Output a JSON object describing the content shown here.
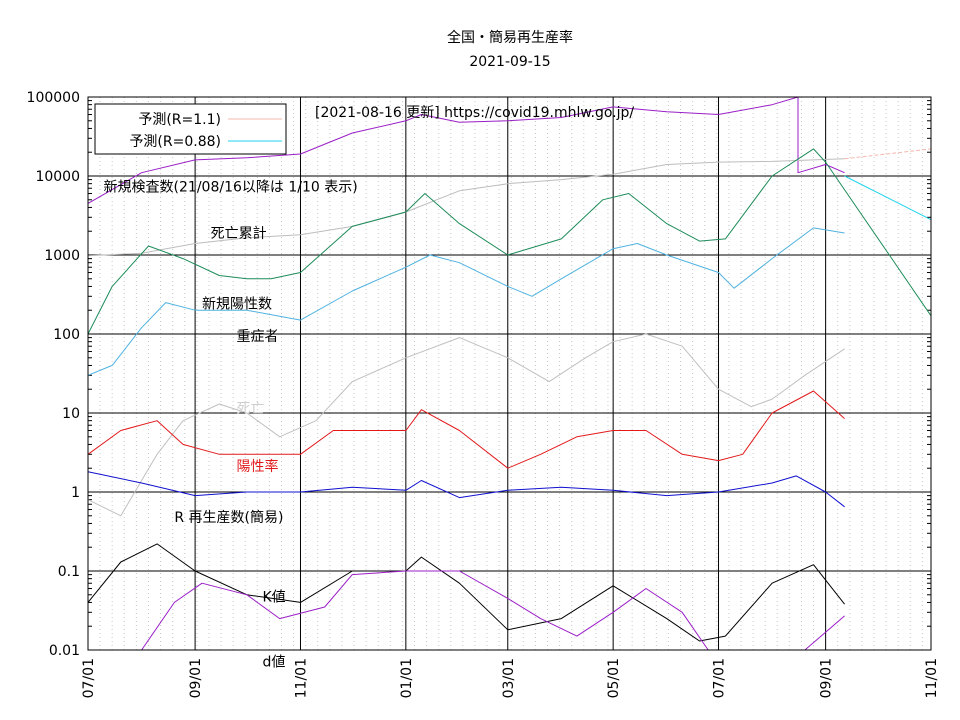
{
  "chart_data": {
    "type": "line",
    "title": "全国・簡易再生産率",
    "subtitle": "2021-09-15",
    "source_note": "[2021-08-16 更新] https://covid19.mhlw.go.jp/",
    "y_scale": "log",
    "ylim": [
      0.01,
      100000
    ],
    "y_ticks": [
      "0.01",
      "0.1",
      "1",
      "10",
      "100",
      "1000",
      "10000",
      "100000"
    ],
    "x_range": [
      "2020-07-01",
      "2021-11-01"
    ],
    "x_ticks": [
      "07/01",
      "09/01",
      "11/01",
      "01/01",
      "03/01",
      "05/01",
      "07/01",
      "09/01",
      "11/01"
    ],
    "grid": true,
    "legend": {
      "placement": "top-left",
      "entries": [
        {
          "label": "予測(R=1.1)",
          "color": "#f4b8ae"
        },
        {
          "label": "予測(R=0.88)",
          "color": "#22d3ee"
        }
      ]
    },
    "series": [
      {
        "name": "新規検査数(21/08/16以降は 1/10 表示)",
        "color": "#9b1fc7",
        "x": [
          "2020-07-01",
          "2020-08-01",
          "2020-09-01",
          "2020-10-01",
          "2020-11-01",
          "2020-12-01",
          "2021-01-01",
          "2021-01-10",
          "2021-02-01",
          "2021-03-01",
          "2021-04-01",
          "2021-05-01",
          "2021-06-01",
          "2021-07-01",
          "2021-08-01",
          "2021-08-16",
          "2021-08-16",
          "2021-09-01",
          "2021-09-12"
        ],
        "values": [
          4500,
          11000,
          16000,
          17000,
          19000,
          35000,
          50000,
          60000,
          48000,
          50000,
          55000,
          75000,
          65000,
          60000,
          80000,
          100000,
          11000,
          14000,
          11000
        ]
      },
      {
        "name": "死亡累計",
        "color": "#bdbdbd",
        "x": [
          "2020-07-01",
          "2020-08-01",
          "2020-09-01",
          "2020-10-01",
          "2020-11-01",
          "2020-12-01",
          "2021-01-01",
          "2021-02-01",
          "2021-03-01",
          "2021-04-01",
          "2021-05-01",
          "2021-06-01",
          "2021-07-01",
          "2021-08-01",
          "2021-09-12"
        ],
        "values": [
          980,
          1050,
          1400,
          1650,
          1800,
          2300,
          3500,
          6500,
          8000,
          9000,
          10500,
          14000,
          15000,
          15300,
          16500
        ]
      },
      {
        "name": "",
        "color": "#1e8c5a",
        "x": [
          "2020-07-01",
          "2020-07-15",
          "2020-08-05",
          "2020-08-25",
          "2020-09-15",
          "2020-10-01",
          "2020-10-15",
          "2020-11-01",
          "2020-12-01",
          "2021-01-01",
          "2021-01-12",
          "2021-02-01",
          "2021-03-01",
          "2021-04-01",
          "2021-04-25",
          "2021-05-10",
          "2021-06-01",
          "2021-06-20",
          "2021-07-05",
          "2021-08-01",
          "2021-08-25",
          "2021-09-01",
          "2021-11-01"
        ],
        "values": [
          100,
          400,
          1300,
          900,
          550,
          500,
          500,
          600,
          2300,
          3500,
          6000,
          2500,
          1000,
          1600,
          5000,
          6000,
          2500,
          1500,
          1600,
          10000,
          22000,
          15000,
          170
        ]
      },
      {
        "name": "新規陽性数",
        "color": "#4fb2e0",
        "x": [
          "2020-07-01",
          "2020-07-15",
          "2020-08-01",
          "2020-08-15",
          "2020-09-01",
          "2020-10-01",
          "2020-11-01",
          "2020-12-01",
          "2021-01-01",
          "2021-01-15",
          "2021-02-01",
          "2021-03-01",
          "2021-03-15",
          "2021-04-01",
          "2021-05-01",
          "2021-05-15",
          "2021-06-01",
          "2021-07-01",
          "2021-07-10",
          "2021-08-01",
          "2021-08-25",
          "2021-09-12"
        ],
        "values": [
          30,
          40,
          120,
          250,
          200,
          200,
          150,
          350,
          700,
          1000,
          800,
          400,
          300,
          500,
          1200,
          1400,
          1000,
          600,
          380,
          900,
          2200,
          1900
        ]
      },
      {
        "name": "重症者",
        "color": "#c0c0c0",
        "x": [
          "2020-07-01",
          "2020-07-20",
          "2020-08-10",
          "2020-08-25",
          "2020-09-15",
          "2020-10-01",
          "2020-10-20",
          "2020-11-10",
          "2020-12-01",
          "2021-01-01",
          "2021-02-01",
          "2021-03-01",
          "2021-03-25",
          "2021-04-15",
          "2021-05-01",
          "2021-05-20",
          "2021-06-10",
          "2021-07-01",
          "2021-07-20",
          "2021-08-01",
          "2021-08-20",
          "2021-09-12"
        ],
        "values": [
          0.8,
          0.5,
          3,
          8,
          13,
          10,
          5,
          8,
          25,
          50,
          90,
          50,
          25,
          50,
          80,
          100,
          70,
          20,
          12,
          15,
          30,
          65
        ]
      },
      {
        "name": "陽性率",
        "color": "#e31a1c",
        "x": [
          "2020-07-01",
          "2020-07-20",
          "2020-08-10",
          "2020-08-25",
          "2020-09-15",
          "2020-10-01",
          "2020-10-20",
          "2020-11-01",
          "2020-11-20",
          "2020-12-01",
          "2021-01-01",
          "2021-01-10",
          "2021-02-01",
          "2021-03-01",
          "2021-03-20",
          "2021-04-10",
          "2021-05-01",
          "2021-05-20",
          "2021-06-10",
          "2021-07-01",
          "2021-07-15",
          "2021-08-01",
          "2021-08-25",
          "2021-09-12"
        ],
        "values": [
          3,
          6,
          8,
          4,
          3,
          3,
          3,
          3,
          6,
          6,
          6,
          11,
          6,
          2,
          3,
          5,
          6,
          6,
          3,
          2.5,
          3,
          10,
          19,
          8.5
        ]
      },
      {
        "name": "R  再生産数(簡易)",
        "color": "#1010d0",
        "x": [
          "2020-07-01",
          "2020-08-01",
          "2020-09-01",
          "2020-10-01",
          "2020-11-01",
          "2020-12-01",
          "2021-01-01",
          "2021-01-10",
          "2021-02-01",
          "2021-03-01",
          "2021-04-01",
          "2021-05-01",
          "2021-06-01",
          "2021-07-01",
          "2021-08-01",
          "2021-08-15",
          "2021-09-01",
          "2021-09-12"
        ],
        "values": [
          1.8,
          1.3,
          0.9,
          1.0,
          1.0,
          1.15,
          1.05,
          1.4,
          0.85,
          1.05,
          1.15,
          1.05,
          0.9,
          1.0,
          1.3,
          1.6,
          1.0,
          0.65
        ]
      },
      {
        "name": "K値",
        "color": "#000000",
        "x": [
          "2020-07-01",
          "2020-07-20",
          "2020-08-10",
          "2020-09-01",
          "2020-10-01",
          "2020-11-01",
          "2020-12-01",
          "2021-01-01",
          "2021-01-10",
          "2021-02-01",
          "2021-03-01",
          "2021-04-01",
          "2021-05-01",
          "2021-06-01",
          "2021-06-20",
          "2021-07-05",
          "2021-08-01",
          "2021-08-25",
          "2021-09-12"
        ],
        "values": [
          0.04,
          0.13,
          0.22,
          0.1,
          0.05,
          0.04,
          0.1,
          0.1,
          0.15,
          0.07,
          0.018,
          0.025,
          0.065,
          0.025,
          0.013,
          0.015,
          0.07,
          0.12,
          0.038
        ]
      },
      {
        "name": "d値",
        "color": "#9b1fc7",
        "x": [
          "2020-08-01",
          "2020-08-20",
          "2020-09-05",
          "2020-10-01",
          "2020-10-20",
          "2020-11-15",
          "2020-12-01",
          "2021-01-01",
          "2021-02-01",
          "2021-03-01",
          "2021-03-20",
          "2021-04-10",
          "2021-05-01",
          "2021-05-20",
          "2021-06-10",
          "2021-06-25",
          "2021-08-20",
          "2021-09-12"
        ],
        "values": [
          0.01,
          0.04,
          0.07,
          0.05,
          0.025,
          0.035,
          0.09,
          0.1,
          0.1,
          0.045,
          0.025,
          0.015,
          0.03,
          0.06,
          0.03,
          0.01,
          0.01,
          0.027
        ]
      },
      {
        "name": "予測(R=1.1)",
        "color": "#f4b8ae",
        "dashed": true,
        "x": [
          "2021-09-12",
          "2021-11-01"
        ],
        "values": [
          16500,
          22000
        ]
      },
      {
        "name": "予測(R=0.88)",
        "color": "#22d3ee",
        "x": [
          "2021-09-12",
          "2021-11-01"
        ],
        "values": [
          10000,
          2800
        ]
      }
    ],
    "annotations": [
      {
        "text": "新規検査数(21/08/16以降は 1/10 表示)",
        "x": "2020-07-10",
        "y": 6400,
        "color": "#000000"
      },
      {
        "text": "死亡累計",
        "x": "2020-09-10",
        "y": 1650,
        "color": "#000000"
      },
      {
        "text": "新規陽性数",
        "x": "2020-09-05",
        "y": 210,
        "color": "#000000"
      },
      {
        "text": "重症者",
        "x": "2020-09-25",
        "y": 82,
        "color": "#000000"
      },
      {
        "text": "死亡",
        "x": "2020-09-25",
        "y": 10,
        "color": "#cfcfcf"
      },
      {
        "text": "陽性率",
        "x": "2020-09-25",
        "y": 1.85,
        "color": "#e31a1c"
      },
      {
        "text": "R  再生産数(簡易)",
        "x": "2020-08-20",
        "y": 0.42,
        "color": "#000000"
      },
      {
        "text": "K値",
        "x": "2020-10-10",
        "y": 0.041,
        "color": "#000000"
      },
      {
        "text": "d値",
        "x": "2020-10-10",
        "y": 0.0062,
        "color": "#000000"
      }
    ]
  }
}
